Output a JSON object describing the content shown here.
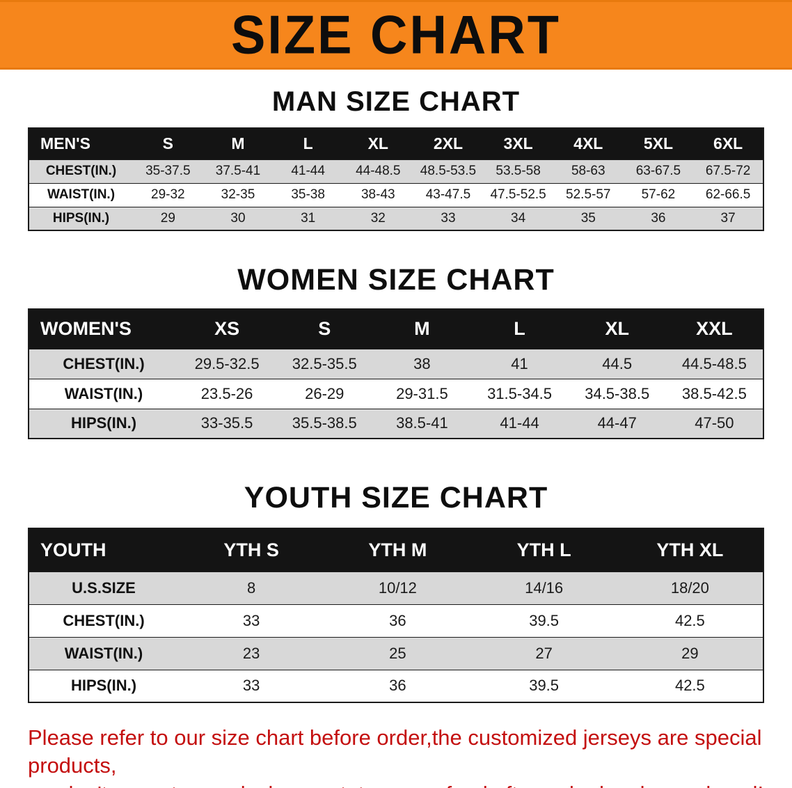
{
  "banner": {
    "title": "SIZE CHART"
  },
  "sections": {
    "men": {
      "heading": "MAN SIZE CHART",
      "table": {
        "header": [
          "MEN'S",
          "S",
          "M",
          "L",
          "XL",
          "2XL",
          "3XL",
          "4XL",
          "5XL",
          "6XL"
        ],
        "rows": [
          [
            "CHEST(IN.)",
            "35-37.5",
            "37.5-41",
            "41-44",
            "44-48.5",
            "48.5-53.5",
            "53.5-58",
            "58-63",
            "63-67.5",
            "67.5-72"
          ],
          [
            "WAIST(IN.)",
            "29-32",
            "32-35",
            "35-38",
            "38-43",
            "43-47.5",
            "47.5-52.5",
            "52.5-57",
            "57-62",
            "62-66.5"
          ],
          [
            "HIPS(IN.)",
            "29",
            "30",
            "31",
            "32",
            "33",
            "34",
            "35",
            "36",
            "37"
          ]
        ]
      }
    },
    "women": {
      "heading": "WOMEN SIZE CHART",
      "table": {
        "header": [
          "WOMEN'S",
          "XS",
          "S",
          "M",
          "L",
          "XL",
          "XXL"
        ],
        "rows": [
          [
            "CHEST(IN.)",
            "29.5-32.5",
            "32.5-35.5",
            "38",
            "41",
            "44.5",
            "44.5-48.5"
          ],
          [
            "WAIST(IN.)",
            "23.5-26",
            "26-29",
            "29-31.5",
            "31.5-34.5",
            "34.5-38.5",
            "38.5-42.5"
          ],
          [
            "HIPS(IN.)",
            "33-35.5",
            "35.5-38.5",
            "38.5-41",
            "41-44",
            "44-47",
            "47-50"
          ]
        ]
      }
    },
    "youth": {
      "heading": "YOUTH SIZE CHART",
      "table": {
        "header": [
          "YOUTH",
          "YTH S",
          "YTH M",
          "YTH L",
          "YTH XL"
        ],
        "rows": [
          [
            "U.S.SIZE",
            "8",
            "10/12",
            "14/16",
            "18/20"
          ],
          [
            "CHEST(IN.)",
            "33",
            "36",
            "39.5",
            "42.5"
          ],
          [
            "WAIST(IN.)",
            "23",
            "25",
            "27",
            "29"
          ],
          [
            "HIPS(IN.)",
            "33",
            "36",
            "39.5",
            "42.5"
          ]
        ]
      }
    }
  },
  "footer": {
    "line1": "Please refer to our size chart before order,the customized jerseys are special products,",
    "line2": "we don't accept cancel, change, teturn or refund after order has been placed!"
  },
  "colors": {
    "banner_bg": "#F6861C",
    "table_header_bg": "#141414",
    "row_shade": "#d8d8d8",
    "warning_text": "#c40f0f"
  }
}
